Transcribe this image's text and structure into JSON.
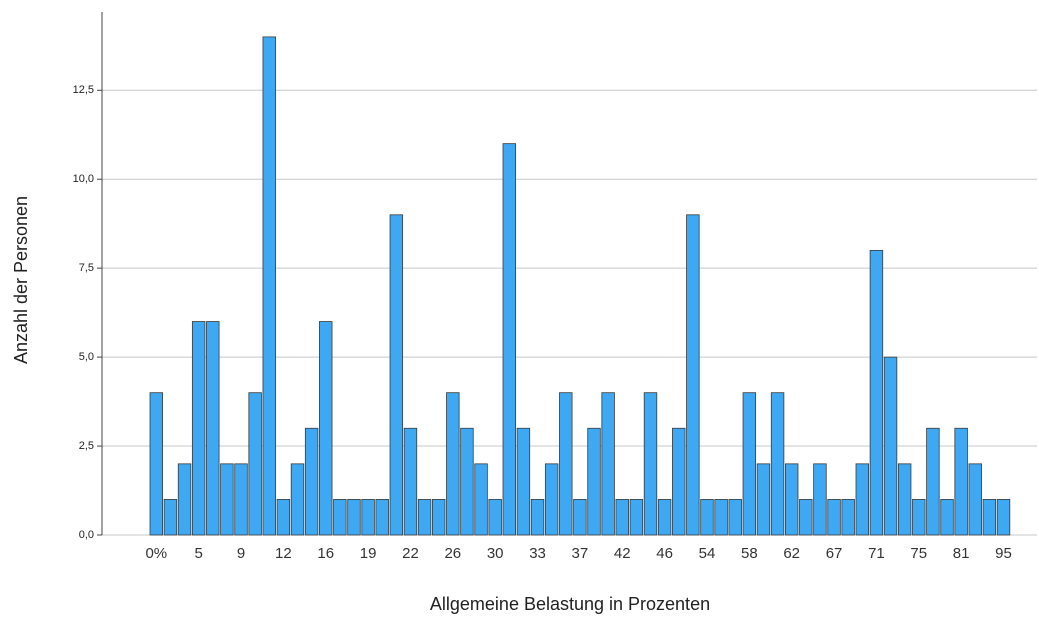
{
  "chart_data": {
    "type": "bar",
    "x_label": "Allgemeine Belastung in Prozenten",
    "y_label": "Anzahl der Personen",
    "categories": [
      "0%",
      null,
      null,
      "5",
      null,
      null,
      "9",
      null,
      null,
      "12",
      null,
      null,
      "16",
      null,
      null,
      "19",
      null,
      null,
      "22",
      null,
      null,
      "26",
      null,
      null,
      "30",
      null,
      null,
      "33",
      null,
      null,
      "37",
      null,
      null,
      "42",
      null,
      null,
      "46",
      null,
      null,
      "54",
      null,
      null,
      "58",
      null,
      null,
      "62",
      null,
      null,
      "67",
      null,
      null,
      "71",
      null,
      null,
      "75",
      null,
      null,
      "81",
      null,
      null,
      "95"
    ],
    "values": [
      4,
      1,
      2,
      6,
      6,
      2,
      2,
      4,
      14,
      1,
      2,
      3,
      6,
      1,
      1,
      1,
      1,
      9,
      3,
      1,
      1,
      4,
      3,
      2,
      1,
      11,
      3,
      1,
      2,
      4,
      1,
      3,
      4,
      1,
      1,
      4,
      1,
      3,
      9,
      1,
      1,
      1,
      4,
      2,
      4,
      2,
      1,
      2,
      1,
      1,
      2,
      8,
      5,
      2,
      1,
      3,
      1,
      3,
      2,
      1,
      1
    ],
    "color": "#3ea8f2",
    "ylim": [
      0,
      14.7
    ],
    "yticks": [
      {
        "value": 0,
        "label": "0,0"
      },
      {
        "value": 2.5,
        "label": "2,5"
      },
      {
        "value": 5,
        "label": "5,0"
      },
      {
        "value": 7.5,
        "label": "7,5"
      },
      {
        "value": 10,
        "label": "10,0"
      },
      {
        "value": 12.5,
        "label": "12,5"
      }
    ],
    "grid": true
  }
}
